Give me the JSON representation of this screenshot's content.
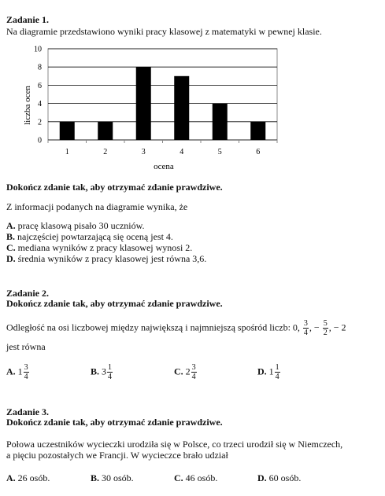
{
  "z1": {
    "title": "Zadanie 1.",
    "intro": "Na diagramie przedstawiono wyniki pracy klasowej z matematyki w pewnej klasie.",
    "instruction": "Dokończ zdanie tak, aby otrzymać zdanie prawdziwe.",
    "stem": "Z informacji podanych na diagramie wynika, że",
    "options": [
      {
        "letter": "A.",
        "text": "pracę klasową pisało 30 uczniów."
      },
      {
        "letter": "B.",
        "text": "najczęściej powtarzającą się oceną jest 4."
      },
      {
        "letter": "C.",
        "text": "mediana wyników z pracy klasowej wynosi 2."
      },
      {
        "letter": "D.",
        "text": "średnia wyników z pracy klasowej jest równa 3,6."
      }
    ]
  },
  "chart_data": {
    "type": "bar",
    "categories": [
      "1",
      "2",
      "3",
      "4",
      "5",
      "6"
    ],
    "values": [
      2,
      2,
      8,
      7,
      4,
      2
    ],
    "xlabel": "ocena",
    "ylabel": "liczba ocen",
    "ylim": [
      0,
      10
    ],
    "yticks": [
      "0",
      "2",
      "4",
      "6",
      "8",
      "10"
    ],
    "grid": true,
    "bar_color": "#000000"
  },
  "z2": {
    "title": "Zadanie 2.",
    "instruction": "Dokończ zdanie tak, aby otrzymać zdanie prawdziwe.",
    "stem_start": "Odległość na osi liczbowej między największą i najmniejszą spośród liczb: 0,",
    "n1_num": "3",
    "n1_den": "4",
    "sep1": ",",
    "n2_sign": "−",
    "n2_num": "5",
    "n2_den": "2",
    "sep2": ",",
    "n3": "− 2",
    "stem_end": "jest równa",
    "options": [
      {
        "letter": "A.",
        "whole": "1",
        "num": "3",
        "den": "4"
      },
      {
        "letter": "B.",
        "whole": "3",
        "num": "1",
        "den": "4"
      },
      {
        "letter": "C.",
        "whole": "2",
        "num": "3",
        "den": "4"
      },
      {
        "letter": "D.",
        "whole": "1",
        "num": "1",
        "den": "4"
      }
    ]
  },
  "z3": {
    "title": "Zadanie 3.",
    "instruction": "Dokończ zdanie tak, aby otrzymać zdanie prawdziwe.",
    "stem_line1": "Połowa uczestników wycieczki urodziła się w Polsce, co trzeci urodził się w Niemczech,",
    "stem_line2": "a pięciu pozostałych we Francji. W wycieczce brało udział",
    "options": [
      {
        "letter": "A.",
        "text": "26 osób."
      },
      {
        "letter": "B.",
        "text": "30 osób."
      },
      {
        "letter": "C.",
        "text": "46 osób."
      },
      {
        "letter": "D.",
        "text": "60 osób."
      }
    ]
  }
}
